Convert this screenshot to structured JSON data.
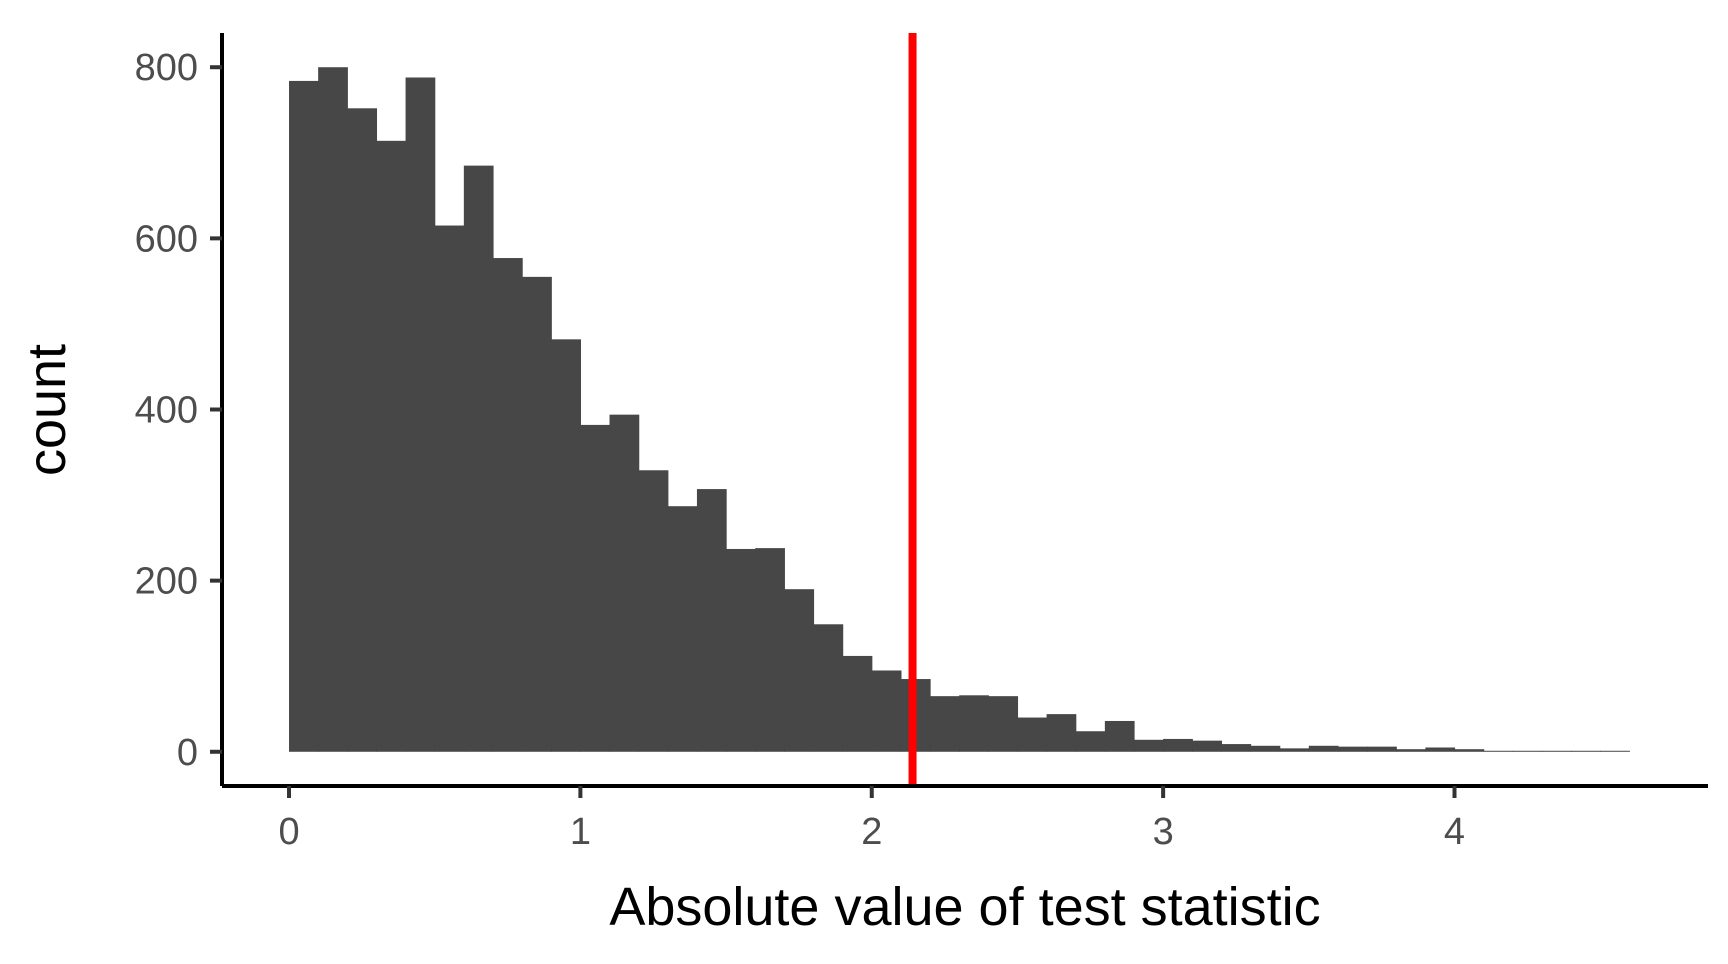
{
  "chart_data": {
    "type": "bar",
    "subtype": "histogram",
    "xlabel": "Absolute value of test statistic",
    "ylabel": "count",
    "bin_width": 0.1,
    "bin_starts": [
      0.0,
      0.1,
      0.2,
      0.3,
      0.4,
      0.5,
      0.6,
      0.7,
      0.8,
      0.9,
      1.0,
      1.1,
      1.2,
      1.3,
      1.4,
      1.5,
      1.6,
      1.7,
      1.8,
      1.9,
      2.0,
      2.1,
      2.2,
      2.3,
      2.4,
      2.5,
      2.6,
      2.7,
      2.8,
      2.9,
      3.0,
      3.1,
      3.2,
      3.3,
      3.4,
      3.5,
      3.6,
      3.7,
      3.8,
      3.9,
      4.0,
      4.1,
      4.2,
      4.3,
      4.4,
      4.5
    ],
    "values": [
      784,
      800,
      752,
      714,
      788,
      615,
      685,
      577,
      555,
      482,
      382,
      394,
      329,
      287,
      307,
      237,
      238,
      190,
      149,
      112,
      95,
      85,
      65,
      66,
      65,
      40,
      44,
      24,
      36,
      14,
      15,
      13,
      9,
      7,
      4,
      7,
      6,
      6,
      3,
      5,
      3,
      1,
      1,
      0,
      0,
      1
    ],
    "vline": {
      "x": 2.14,
      "color": "#ff0000"
    },
    "xlim": [
      -0.23,
      4.87
    ],
    "ylim": [
      -40,
      840
    ],
    "xticks": [
      0,
      1,
      2,
      3,
      4
    ],
    "yticks": [
      0,
      200,
      400,
      600,
      800
    ],
    "bar_color": "#474747",
    "grid": false
  }
}
